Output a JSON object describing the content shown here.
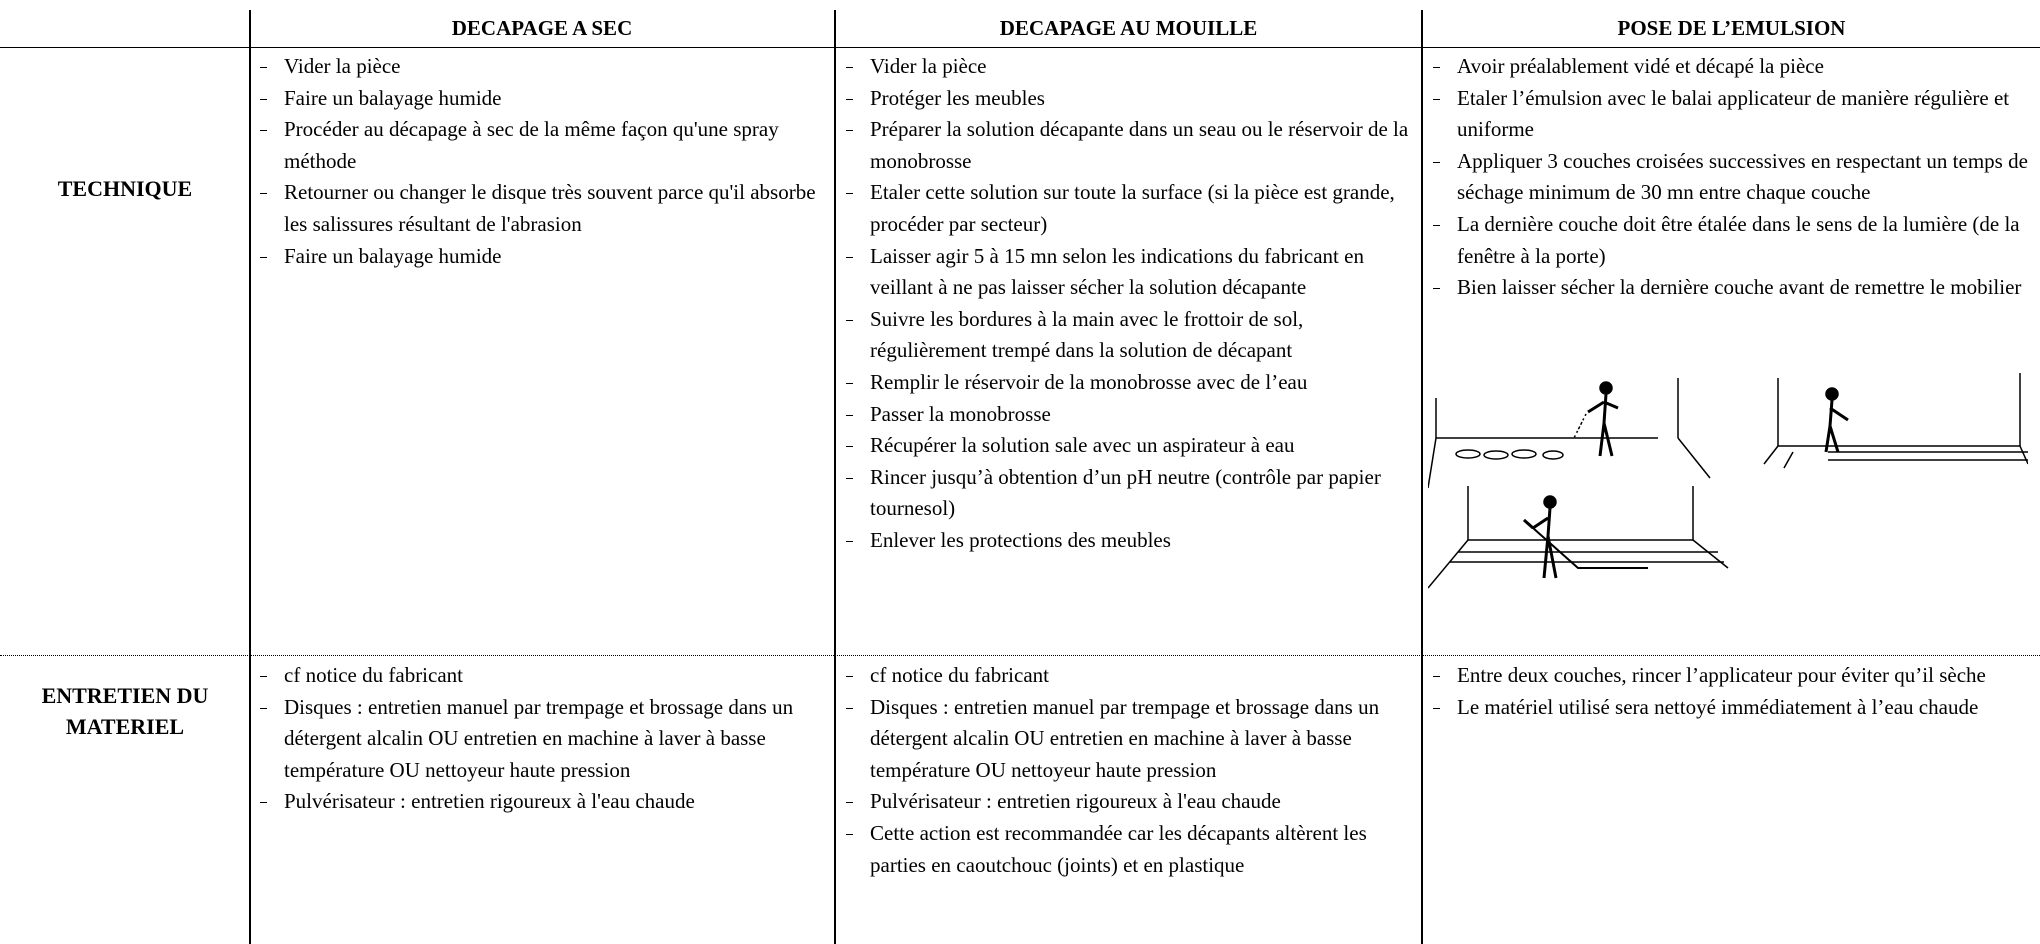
{
  "columns": [
    "DECAPAGE A SEC",
    "DECAPAGE AU MOUILLE",
    "POSE DE L’EMULSION"
  ],
  "rows": [
    {
      "label": "TECHNIQUE",
      "cells": [
        [
          "Vider la pièce",
          "Faire un balayage humide",
          "Procéder au décapage à sec de la même façon qu'une spray méthode",
          "Retourner ou changer le disque très souvent parce qu'il absorbe les salissures résultant de l'abrasion",
          "Faire un balayage humide"
        ],
        [
          "Vider la pièce",
          "Protéger les meubles",
          "Préparer la solution décapante dans un seau ou le réservoir de la monobrosse",
          "Etaler cette solution sur toute la surface (si la pièce est grande, procéder par secteur)",
          "Laisser agir 5 à 15 mn selon les indications du fabricant en veillant à ne pas laisser sécher la solution décapante",
          "Suivre les bordures à la main avec le frottoir de sol, régulièrement trempé dans la solution de décapant",
          "Remplir le réservoir de la monobrosse avec de l’eau",
          "Passer la monobrosse",
          "Récupérer la solution sale avec un aspirateur à eau",
          "Rincer jusqu’à obtention d’un pH neutre (contrôle par papier tournesol)",
          "Enlever les protections des meubles"
        ],
        [
          "Avoir préalablement vidé et décapé la pièce",
          "Etaler l’émulsion avec le balai applicateur de manière régulière et uniforme",
          "Appliquer 3 couches croisées successives en respectant un temps de séchage minimum de 30 mn entre chaque couche",
          "La dernière couche doit être étalée dans le sens de la lumière (de la fenêtre à la porte)",
          "Bien laisser sécher la dernière couche avant de remettre le mobilier"
        ]
      ]
    },
    {
      "label": "ENTRETIEN DU MATERIEL",
      "cells": [
        [
          "cf notice du fabricant",
          "Disques : entretien manuel par trempage et brossage dans un détergent alcalin OU entretien en machine à laver à basse température OU nettoyeur haute pression",
          "Pulvérisateur : entretien rigoureux à l'eau chaude"
        ],
        [
          "cf notice du fabricant",
          "Disques : entretien manuel par trempage et brossage dans un détergent alcalin OU entretien en machine à laver à basse température OU nettoyeur haute pression",
          "Pulvérisateur : entretien rigoureux à l'eau chaude",
          "Cette action est recommandée car les décapants altèrent les parties en caoutchouc (joints) et en plastique"
        ],
        [
          "Entre deux couches, rincer l’applicateur pour éviter qu’il sèche",
          "Le matériel utilisé sera nettoyé immédiatement à l’eau chaude"
        ]
      ]
    }
  ]
}
